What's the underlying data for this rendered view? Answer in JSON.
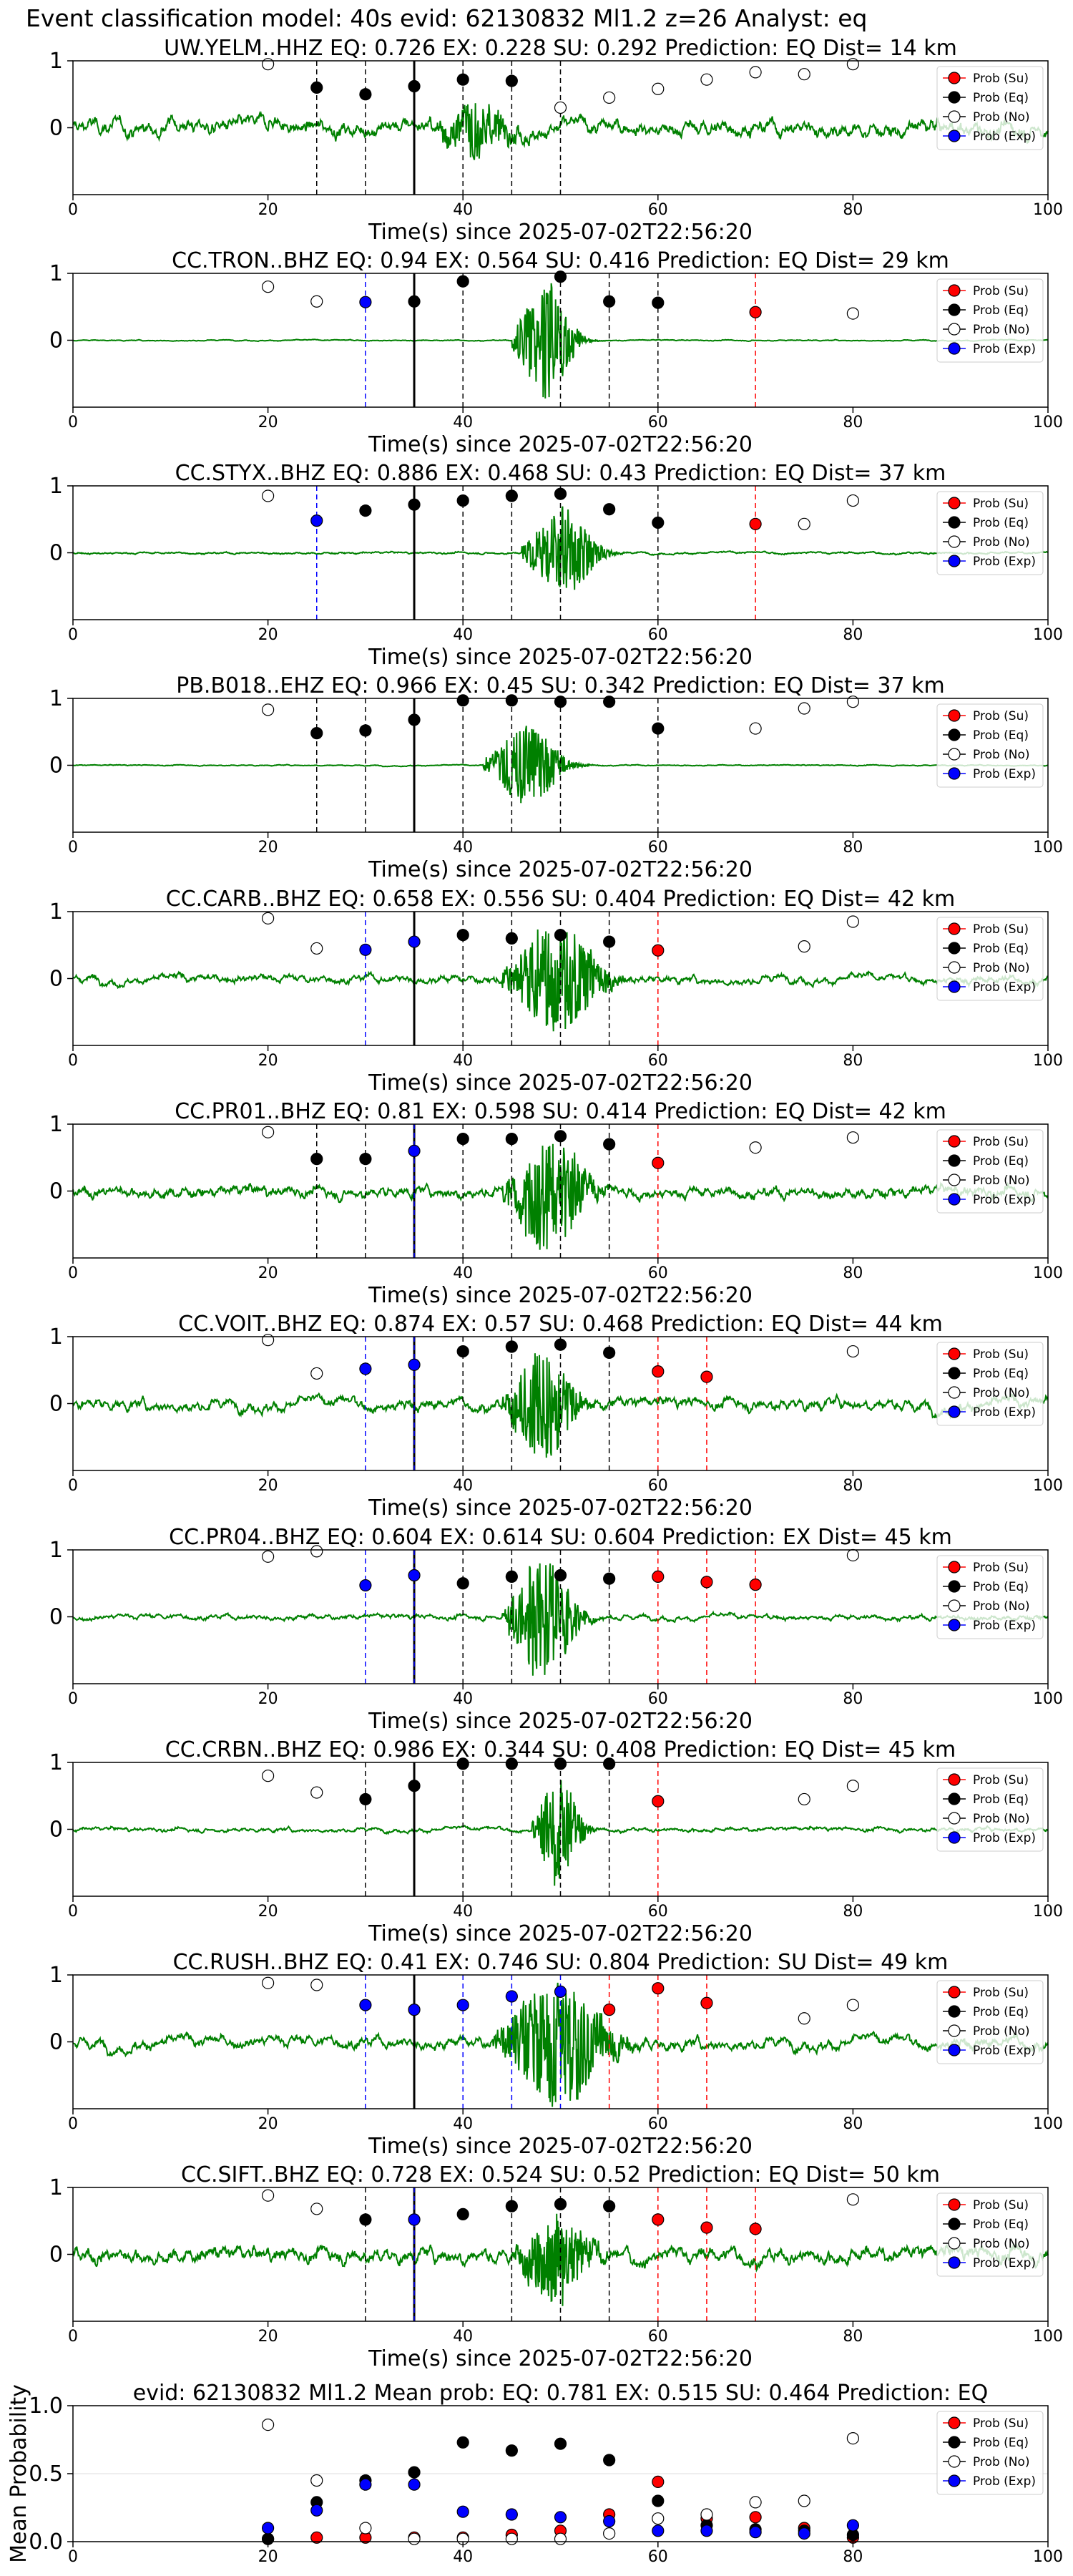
{
  "figure": {
    "suptitle": "Event classification model: 40s evid: 62130832 Ml1.2 z=26 Analyst: eq"
  },
  "legend_labels": [
    "Prob (Su)",
    "Prob (Eq)",
    "Prob (No)",
    "Prob (Exp)"
  ],
  "colors": {
    "su": "#ff0000",
    "eq": "#000000",
    "no": "#ffffff",
    "exp": "#0000ff",
    "trace": "#008000"
  },
  "shared": {
    "xlabel": "Time(s) since 2025-07-02T22:56:20",
    "xlim": [
      0,
      100
    ],
    "xticks": [
      0,
      20,
      40,
      60,
      80,
      100
    ],
    "yticks": [
      0,
      1
    ],
    "ylim": [
      -1,
      1
    ],
    "p_arrival": 35,
    "window_times": [
      20,
      25,
      30,
      35,
      40,
      45,
      50,
      55,
      60,
      65,
      70,
      75,
      80
    ]
  },
  "chart_data": [
    {
      "type": "line",
      "title": "UW.YELM..HHZ   EQ: 0.726  EX: 0.228  SU: 0.292   Prediction: EQ    Dist= 14 km",
      "trace": {
        "noise": 0.3,
        "event_amp": 0.4,
        "event_start": 37,
        "event_end": 50
      },
      "vlines": [
        [
          25,
          "eq"
        ],
        [
          30,
          "eq"
        ],
        [
          40,
          "eq"
        ],
        [
          45,
          "eq"
        ],
        [
          50,
          "no"
        ]
      ],
      "points": [
        [
          20,
          0.95,
          "no"
        ],
        [
          25,
          0.6,
          "eq"
        ],
        [
          30,
          0.5,
          "eq"
        ],
        [
          35,
          0.62,
          "eq"
        ],
        [
          40,
          0.72,
          "eq"
        ],
        [
          45,
          0.7,
          "eq"
        ],
        [
          50,
          0.3,
          "no"
        ],
        [
          55,
          0.45,
          "no"
        ],
        [
          60,
          0.58,
          "no"
        ],
        [
          65,
          0.72,
          "no"
        ],
        [
          70,
          0.83,
          "no"
        ],
        [
          75,
          0.8,
          "no"
        ],
        [
          80,
          0.95,
          "no"
        ]
      ]
    },
    {
      "type": "line",
      "title": "CC.TRON..BHZ   EQ: 0.94  EX: 0.564  SU: 0.416   Prediction: EQ    Dist= 29 km",
      "trace": {
        "noise": 0.02,
        "event_amp": 0.95,
        "event_start": 45,
        "event_end": 55
      },
      "vlines": [
        [
          30,
          "exp"
        ],
        [
          40,
          "eq"
        ],
        [
          50,
          "eq"
        ],
        [
          55,
          "eq"
        ],
        [
          60,
          "eq"
        ],
        [
          70,
          "su"
        ]
      ],
      "points": [
        [
          20,
          0.8,
          "no"
        ],
        [
          25,
          0.58,
          "no"
        ],
        [
          30,
          0.57,
          "exp"
        ],
        [
          35,
          0.58,
          "eq"
        ],
        [
          40,
          0.88,
          "eq"
        ],
        [
          50,
          0.95,
          "eq"
        ],
        [
          55,
          0.58,
          "eq"
        ],
        [
          60,
          0.56,
          "eq"
        ],
        [
          70,
          0.42,
          "su"
        ],
        [
          80,
          0.4,
          "no"
        ]
      ]
    },
    {
      "type": "line",
      "title": "CC.STYX..BHZ   EQ: 0.886  EX: 0.468  SU: 0.43   Prediction: EQ    Dist= 37 km",
      "trace": {
        "noise": 0.04,
        "event_amp": 0.7,
        "event_start": 46,
        "event_end": 58
      },
      "vlines": [
        [
          25,
          "exp"
        ],
        [
          35,
          "eq"
        ],
        [
          40,
          "eq"
        ],
        [
          45,
          "eq"
        ],
        [
          50,
          "eq"
        ],
        [
          60,
          "eq"
        ],
        [
          70,
          "su"
        ]
      ],
      "points": [
        [
          20,
          0.85,
          "no"
        ],
        [
          25,
          0.48,
          "exp"
        ],
        [
          30,
          0.63,
          "eq"
        ],
        [
          35,
          0.72,
          "eq"
        ],
        [
          40,
          0.78,
          "eq"
        ],
        [
          45,
          0.85,
          "eq"
        ],
        [
          50,
          0.88,
          "eq"
        ],
        [
          55,
          0.65,
          "eq"
        ],
        [
          60,
          0.45,
          "eq"
        ],
        [
          70,
          0.43,
          "su"
        ],
        [
          75,
          0.43,
          "no"
        ],
        [
          80,
          0.78,
          "no"
        ]
      ]
    },
    {
      "type": "line",
      "title": "PB.B018..EHZ   EQ: 0.966  EX: 0.45  SU: 0.342   Prediction: EQ    Dist= 37 km",
      "trace": {
        "noise": 0.02,
        "event_amp": 0.6,
        "event_start": 42,
        "event_end": 55
      },
      "vlines": [
        [
          25,
          "eq"
        ],
        [
          30,
          "eq"
        ],
        [
          40,
          "eq"
        ],
        [
          45,
          "eq"
        ],
        [
          50,
          "eq"
        ],
        [
          60,
          "eq"
        ]
      ],
      "points": [
        [
          20,
          0.83,
          "no"
        ],
        [
          25,
          0.48,
          "eq"
        ],
        [
          30,
          0.52,
          "eq"
        ],
        [
          35,
          0.68,
          "eq"
        ],
        [
          40,
          0.97,
          "eq"
        ],
        [
          45,
          0.97,
          "eq"
        ],
        [
          50,
          0.95,
          "eq"
        ],
        [
          55,
          0.95,
          "eq"
        ],
        [
          60,
          0.55,
          "eq"
        ],
        [
          70,
          0.55,
          "no"
        ],
        [
          75,
          0.85,
          "no"
        ],
        [
          80,
          0.95,
          "no"
        ]
      ]
    },
    {
      "type": "line",
      "title": "CC.CARB..BHZ   EQ: 0.658  EX: 0.556  SU: 0.404   Prediction: EQ    Dist= 42 km",
      "trace": {
        "noise": 0.15,
        "event_amp": 0.85,
        "event_start": 44,
        "event_end": 60
      },
      "vlines": [
        [
          30,
          "exp"
        ],
        [
          40,
          "eq"
        ],
        [
          45,
          "eq"
        ],
        [
          50,
          "eq"
        ],
        [
          55,
          "eq"
        ],
        [
          60,
          "su"
        ]
      ],
      "points": [
        [
          20,
          0.9,
          "no"
        ],
        [
          25,
          0.45,
          "no"
        ],
        [
          30,
          0.43,
          "exp"
        ],
        [
          35,
          0.55,
          "exp"
        ],
        [
          40,
          0.65,
          "eq"
        ],
        [
          45,
          0.6,
          "eq"
        ],
        [
          50,
          0.65,
          "eq"
        ],
        [
          55,
          0.55,
          "eq"
        ],
        [
          60,
          0.42,
          "su"
        ],
        [
          75,
          0.48,
          "no"
        ],
        [
          80,
          0.85,
          "no"
        ]
      ]
    },
    {
      "type": "line",
      "title": "CC.PR01..BHZ   EQ: 0.81  EX: 0.598  SU: 0.414   Prediction: EQ    Dist= 42 km",
      "trace": {
        "noise": 0.22,
        "event_amp": 0.85,
        "event_start": 44,
        "event_end": 58
      },
      "vlines": [
        [
          25,
          "eq"
        ],
        [
          30,
          "eq"
        ],
        [
          35,
          "exp"
        ],
        [
          40,
          "eq"
        ],
        [
          45,
          "eq"
        ],
        [
          50,
          "eq"
        ],
        [
          55,
          "eq"
        ],
        [
          60,
          "su"
        ]
      ],
      "points": [
        [
          20,
          0.88,
          "no"
        ],
        [
          25,
          0.48,
          "eq"
        ],
        [
          30,
          0.48,
          "eq"
        ],
        [
          35,
          0.6,
          "exp"
        ],
        [
          40,
          0.78,
          "eq"
        ],
        [
          45,
          0.78,
          "eq"
        ],
        [
          50,
          0.82,
          "eq"
        ],
        [
          55,
          0.7,
          "eq"
        ],
        [
          60,
          0.42,
          "su"
        ],
        [
          70,
          0.65,
          "no"
        ],
        [
          80,
          0.8,
          "no"
        ]
      ]
    },
    {
      "type": "line",
      "title": "CC.VOIT..BHZ   EQ: 0.874  EX: 0.57  SU: 0.468   Prediction: EQ    Dist= 44 km",
      "trace": {
        "noise": 0.22,
        "event_amp": 0.85,
        "event_start": 44,
        "event_end": 56
      },
      "vlines": [
        [
          30,
          "exp"
        ],
        [
          35,
          "exp"
        ],
        [
          40,
          "eq"
        ],
        [
          45,
          "eq"
        ],
        [
          50,
          "eq"
        ],
        [
          55,
          "eq"
        ],
        [
          60,
          "su"
        ],
        [
          65,
          "su"
        ]
      ],
      "points": [
        [
          20,
          0.95,
          "no"
        ],
        [
          25,
          0.45,
          "no"
        ],
        [
          30,
          0.52,
          "exp"
        ],
        [
          35,
          0.58,
          "exp"
        ],
        [
          40,
          0.78,
          "eq"
        ],
        [
          45,
          0.85,
          "eq"
        ],
        [
          50,
          0.88,
          "eq"
        ],
        [
          55,
          0.76,
          "eq"
        ],
        [
          60,
          0.48,
          "su"
        ],
        [
          65,
          0.4,
          "su"
        ],
        [
          80,
          0.78,
          "no"
        ]
      ]
    },
    {
      "type": "line",
      "title": "CC.PR04..BHZ   EQ: 0.604  EX: 0.614  SU: 0.604   Prediction: EX    Dist= 45 km",
      "trace": {
        "noise": 0.1,
        "event_amp": 0.95,
        "event_start": 44,
        "event_end": 56
      },
      "vlines": [
        [
          30,
          "exp"
        ],
        [
          35,
          "exp"
        ],
        [
          40,
          "eq"
        ],
        [
          45,
          "eq"
        ],
        [
          50,
          "eq"
        ],
        [
          55,
          "eq"
        ],
        [
          60,
          "su"
        ],
        [
          65,
          "su"
        ],
        [
          70,
          "su"
        ]
      ],
      "points": [
        [
          20,
          0.9,
          "no"
        ],
        [
          25,
          0.98,
          "no"
        ],
        [
          30,
          0.47,
          "exp"
        ],
        [
          35,
          0.62,
          "exp"
        ],
        [
          40,
          0.5,
          "eq"
        ],
        [
          45,
          0.6,
          "eq"
        ],
        [
          50,
          0.62,
          "eq"
        ],
        [
          55,
          0.57,
          "eq"
        ],
        [
          60,
          0.6,
          "su"
        ],
        [
          65,
          0.52,
          "su"
        ],
        [
          70,
          0.48,
          "su"
        ],
        [
          80,
          0.92,
          "no"
        ]
      ]
    },
    {
      "type": "line",
      "title": "CC.CRBN..BHZ   EQ: 0.986  EX: 0.344  SU: 0.408   Prediction: EQ    Dist= 45 km",
      "trace": {
        "noise": 0.08,
        "event_amp": 0.85,
        "event_start": 47,
        "event_end": 55
      },
      "vlines": [
        [
          30,
          "eq"
        ],
        [
          35,
          "eq"
        ],
        [
          40,
          "eq"
        ],
        [
          45,
          "eq"
        ],
        [
          50,
          "eq"
        ],
        [
          55,
          "eq"
        ],
        [
          60,
          "su"
        ]
      ],
      "points": [
        [
          20,
          0.8,
          "no"
        ],
        [
          25,
          0.55,
          "no"
        ],
        [
          30,
          0.45,
          "eq"
        ],
        [
          35,
          0.65,
          "eq"
        ],
        [
          40,
          0.98,
          "eq"
        ],
        [
          45,
          0.98,
          "eq"
        ],
        [
          50,
          0.98,
          "eq"
        ],
        [
          55,
          0.98,
          "eq"
        ],
        [
          60,
          0.42,
          "su"
        ],
        [
          75,
          0.45,
          "no"
        ],
        [
          80,
          0.65,
          "no"
        ]
      ]
    },
    {
      "type": "line",
      "title": "CC.RUSH..BHZ   EQ: 0.41  EX: 0.746  SU: 0.804   Prediction: SU    Dist= 49 km",
      "trace": {
        "noise": 0.22,
        "event_amp": 0.95,
        "event_start": 43,
        "event_end": 62
      },
      "vlines": [
        [
          30,
          "exp"
        ],
        [
          35,
          "eq"
        ],
        [
          40,
          "exp"
        ],
        [
          45,
          "exp"
        ],
        [
          50,
          "exp"
        ],
        [
          55,
          "su"
        ],
        [
          60,
          "su"
        ],
        [
          65,
          "su"
        ]
      ],
      "points": [
        [
          20,
          0.88,
          "no"
        ],
        [
          25,
          0.85,
          "no"
        ],
        [
          30,
          0.55,
          "exp"
        ],
        [
          35,
          0.48,
          "exp"
        ],
        [
          40,
          0.55,
          "exp"
        ],
        [
          45,
          0.68,
          "exp"
        ],
        [
          50,
          0.75,
          "exp"
        ],
        [
          55,
          0.48,
          "su"
        ],
        [
          60,
          0.8,
          "su"
        ],
        [
          65,
          0.58,
          "su"
        ],
        [
          75,
          0.35,
          "no"
        ],
        [
          80,
          0.55,
          "no"
        ]
      ]
    },
    {
      "type": "line",
      "title": "CC.SIFT..BHZ   EQ: 0.728  EX: 0.524  SU: 0.52   Prediction: EQ    Dist= 50 km",
      "trace": {
        "noise": 0.3,
        "event_amp": 0.65,
        "event_start": 45,
        "event_end": 58
      },
      "vlines": [
        [
          30,
          "eq"
        ],
        [
          35,
          "exp"
        ],
        [
          45,
          "eq"
        ],
        [
          50,
          "eq"
        ],
        [
          55,
          "eq"
        ],
        [
          60,
          "su"
        ],
        [
          65,
          "su"
        ],
        [
          70,
          "su"
        ]
      ],
      "points": [
        [
          20,
          0.88,
          "no"
        ],
        [
          25,
          0.68,
          "no"
        ],
        [
          30,
          0.52,
          "eq"
        ],
        [
          35,
          0.52,
          "exp"
        ],
        [
          40,
          0.6,
          "eq"
        ],
        [
          45,
          0.72,
          "eq"
        ],
        [
          50,
          0.75,
          "eq"
        ],
        [
          55,
          0.72,
          "eq"
        ],
        [
          60,
          0.52,
          "su"
        ],
        [
          65,
          0.4,
          "su"
        ],
        [
          70,
          0.38,
          "su"
        ],
        [
          80,
          0.82,
          "no"
        ]
      ]
    },
    {
      "type": "scatter",
      "title": "evid: 62130832  Ml1.2   Mean prob:    EQ: 0.781  EX: 0.515  SU: 0.464   Prediction: EQ",
      "ylabel": "Mean Probability",
      "ylim": [
        0,
        1
      ],
      "yticks": [
        "0.0",
        "0.5",
        "1.0"
      ],
      "series": [
        {
          "name": "Prob (Su)",
          "color": "su",
          "x": [
            20,
            25,
            30,
            35,
            40,
            45,
            50,
            55,
            60,
            65,
            70,
            75,
            80
          ],
          "y": [
            0.02,
            0.03,
            0.03,
            0.03,
            0.03,
            0.05,
            0.08,
            0.2,
            0.44,
            0.17,
            0.18,
            0.1,
            0.03
          ]
        },
        {
          "name": "Prob (Eq)",
          "color": "eq",
          "x": [
            20,
            25,
            30,
            35,
            40,
            45,
            50,
            55,
            60,
            65,
            70,
            75,
            80
          ],
          "y": [
            0.02,
            0.29,
            0.45,
            0.51,
            0.73,
            0.67,
            0.72,
            0.6,
            0.3,
            0.12,
            0.09,
            0.08,
            0.05
          ]
        },
        {
          "name": "Prob (No)",
          "color": "no",
          "x": [
            20,
            25,
            30,
            35,
            40,
            45,
            50,
            55,
            60,
            65,
            70,
            75,
            80
          ],
          "y": [
            0.86,
            0.45,
            0.1,
            0.02,
            0.02,
            0.02,
            0.02,
            0.06,
            0.17,
            0.2,
            0.29,
            0.3,
            0.76
          ]
        },
        {
          "name": "Prob (Exp)",
          "color": "exp",
          "x": [
            20,
            25,
            30,
            35,
            40,
            45,
            50,
            55,
            60,
            65,
            70,
            75,
            80
          ],
          "y": [
            0.1,
            0.23,
            0.42,
            0.42,
            0.22,
            0.2,
            0.18,
            0.15,
            0.08,
            0.08,
            0.07,
            0.06,
            0.12
          ]
        }
      ]
    }
  ]
}
